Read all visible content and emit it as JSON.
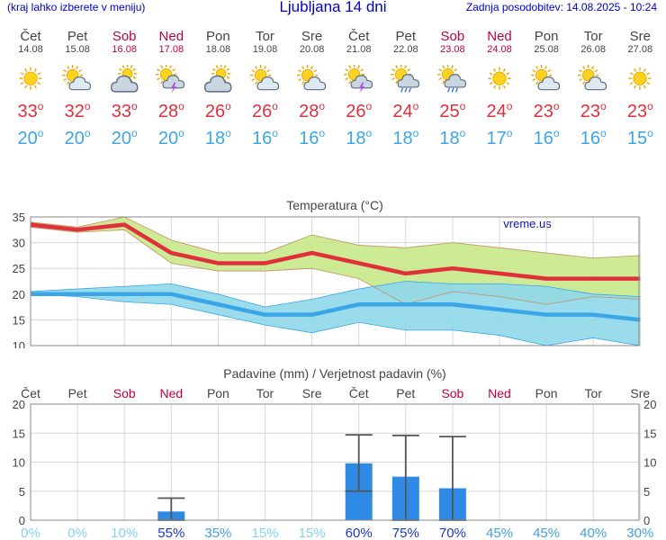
{
  "header": {
    "left_note": "(kraj lahko izberete v meniju)",
    "title": "Ljubljana 14 dni",
    "updated": "Zadnja posodobitev: 14.08.2025 - 10:24"
  },
  "days": [
    {
      "name": "Čet",
      "date": "14.08",
      "weekend": false,
      "icon": "sun-icon",
      "tmax": "33",
      "tmin": "20"
    },
    {
      "name": "Pet",
      "date": "15.08",
      "weekend": false,
      "icon": "sun-cloud-icon",
      "tmax": "32",
      "tmin": "20"
    },
    {
      "name": "Sob",
      "date": "16.08",
      "weekend": true,
      "icon": "cloud-sun-icon",
      "tmax": "33",
      "tmin": "20"
    },
    {
      "name": "Ned",
      "date": "17.08",
      "weekend": true,
      "icon": "storm-sun-icon",
      "tmax": "28",
      "tmin": "20"
    },
    {
      "name": "Pon",
      "date": "18.08",
      "weekend": false,
      "icon": "cloud-sun-icon",
      "tmax": "26",
      "tmin": "18"
    },
    {
      "name": "Tor",
      "date": "19.08",
      "weekend": false,
      "icon": "sun-cloud-icon",
      "tmax": "26",
      "tmin": "16"
    },
    {
      "name": "Sre",
      "date": "20.08",
      "weekend": false,
      "icon": "sun-cloud-icon",
      "tmax": "28",
      "tmin": "16"
    },
    {
      "name": "Čet",
      "date": "21.08",
      "weekend": false,
      "icon": "storm-sun-icon",
      "tmax": "26",
      "tmin": "18"
    },
    {
      "name": "Pet",
      "date": "22.08",
      "weekend": false,
      "icon": "rain-sun-icon",
      "tmax": "24",
      "tmin": "18"
    },
    {
      "name": "Sob",
      "date": "23.08",
      "weekend": true,
      "icon": "rain-sun-icon",
      "tmax": "25",
      "tmin": "18"
    },
    {
      "name": "Ned",
      "date": "24.08",
      "weekend": true,
      "icon": "sun-icon",
      "tmax": "24",
      "tmin": "17"
    },
    {
      "name": "Pon",
      "date": "25.08",
      "weekend": false,
      "icon": "sun-cloud-icon",
      "tmax": "23",
      "tmin": "16"
    },
    {
      "name": "Tor",
      "date": "26.08",
      "weekend": false,
      "icon": "sun-cloud-icon",
      "tmax": "23",
      "tmin": "16"
    },
    {
      "name": "Sre",
      "date": "27.08",
      "weekend": false,
      "icon": "sun-icon",
      "tmax": "23",
      "tmin": "15"
    }
  ],
  "colors": {
    "tmax": "#e0303c",
    "tmin": "#3aa6e8",
    "weekend": "#c00040",
    "max_band": "#c8e888",
    "min_band": "#8fd8ea",
    "overlap_band": "#9ed07a",
    "bar": "#2f8ae6"
  },
  "chart_data": [
    {
      "type": "line",
      "title": "Temperatura (°C)",
      "watermark": "vreme.us",
      "categories": [
        "Čet",
        "Pet",
        "Sob",
        "Ned",
        "Pon",
        "Tor",
        "Sre",
        "Čet",
        "Pet",
        "Sob",
        "Ned",
        "Pon",
        "Tor",
        "Sre"
      ],
      "ylim": [
        10,
        35
      ],
      "yticks": [
        "35",
        "30",
        "25",
        "20",
        "15",
        "10"
      ],
      "grid": true,
      "series": [
        {
          "values": [
            33.5,
            32.5,
            33.5,
            28,
            26,
            26,
            28,
            26,
            24,
            25,
            24,
            23,
            23,
            23
          ]
        },
        {
          "values": [
            20,
            20,
            20,
            20,
            18,
            16,
            16,
            18,
            18,
            18,
            17,
            16,
            16,
            15
          ]
        }
      ],
      "max_band": {
        "upper": [
          34,
          33,
          35,
          30.5,
          28,
          28,
          31.5,
          29.5,
          29,
          30,
          29,
          28,
          27,
          27.5
        ],
        "lower": [
          33,
          32,
          32.5,
          26,
          24.5,
          24.5,
          25,
          23,
          18,
          20.5,
          19.5,
          18,
          19.5,
          19
        ]
      },
      "min_band": {
        "upper": [
          20.5,
          21,
          21.5,
          22,
          20,
          17.5,
          19,
          21,
          22.5,
          22,
          22,
          21.5,
          20,
          19.5
        ],
        "lower": [
          20,
          19.5,
          18.5,
          18,
          16,
          14,
          12.5,
          14.5,
          13,
          13,
          12,
          10,
          11.5,
          10
        ]
      }
    },
    {
      "type": "bar",
      "title": "Padavine (mm) / Verjetnost padavin (%)",
      "categories": [
        "Čet",
        "Pet",
        "Sob",
        "Ned",
        "Pon",
        "Tor",
        "Sre",
        "Čet",
        "Pet",
        "Sob",
        "Ned",
        "Pon",
        "Tor",
        "Sre"
      ],
      "ylim": [
        0,
        20
      ],
      "yticks": [
        "20",
        "15",
        "10",
        "5",
        "0"
      ],
      "values": [
        0,
        0,
        0,
        1.5,
        0,
        0,
        0,
        9.8,
        7.5,
        5.5,
        0,
        0,
        0,
        0
      ],
      "error_low": [
        null,
        null,
        null,
        0,
        null,
        null,
        null,
        5,
        0,
        0,
        null,
        null,
        null,
        null
      ],
      "error_high": [
        null,
        null,
        null,
        3.8,
        null,
        null,
        null,
        14.7,
        14.6,
        14.4,
        null,
        null,
        null,
        null
      ],
      "probability": [
        "0%",
        "0%",
        "10%",
        "55%",
        "35%",
        "15%",
        "15%",
        "60%",
        "75%",
        "70%",
        "45%",
        "45%",
        "40%",
        "30%"
      ],
      "probability_values": [
        0,
        0,
        10,
        55,
        35,
        15,
        15,
        60,
        75,
        70,
        45,
        45,
        40,
        30
      ]
    }
  ]
}
